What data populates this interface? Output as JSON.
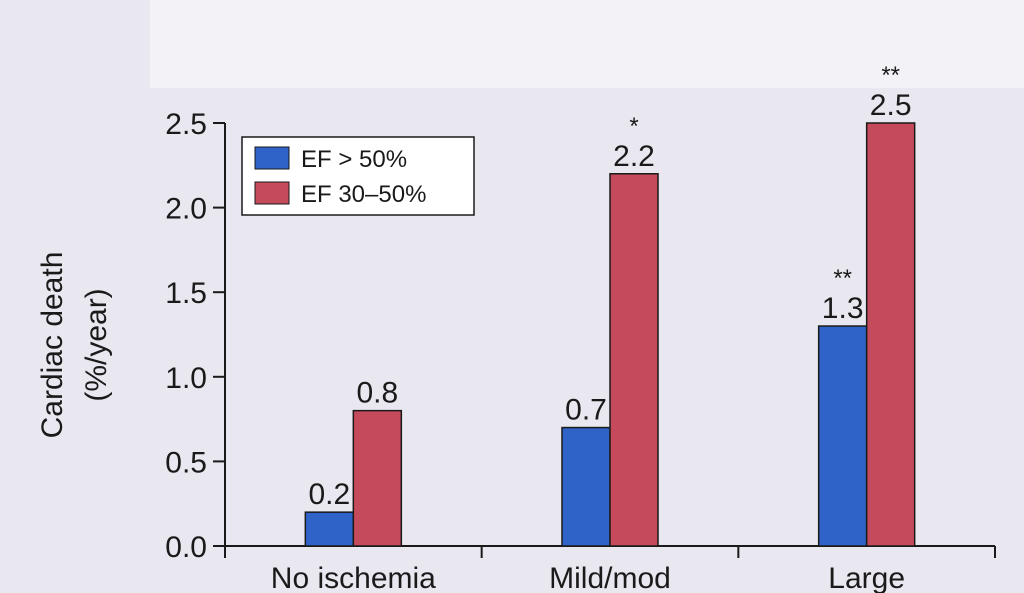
{
  "colors": {
    "background": "#e9e7ef",
    "ef_gt_50": "#2f63c8",
    "ef_30_50": "#c44a5c",
    "axis": "#1a1a1a"
  },
  "chart_data": {
    "type": "bar",
    "title": "",
    "xlabel": "",
    "ylabel": "Cardiac death",
    "ylabel_line2": "(%/year)",
    "ylim": [
      0,
      2.5
    ],
    "yticks": [
      "0.0",
      "0.5",
      "1.0",
      "1.5",
      "2.0",
      "2.5"
    ],
    "categories": [
      "No ischemia",
      "Mild/mod",
      "Large"
    ],
    "series": [
      {
        "name": "EF > 50%",
        "values": [
          0.2,
          0.7,
          1.3
        ],
        "labels": [
          "0.2",
          "0.7",
          "1.3"
        ],
        "annotations": [
          "",
          "",
          "**"
        ]
      },
      {
        "name": "EF 30–50%",
        "values": [
          0.8,
          2.2,
          2.5
        ],
        "labels": [
          "0.8",
          "2.2",
          "2.5"
        ],
        "annotations": [
          "",
          "*",
          "**"
        ]
      }
    ],
    "legend_position": "top-left",
    "grid": false
  }
}
